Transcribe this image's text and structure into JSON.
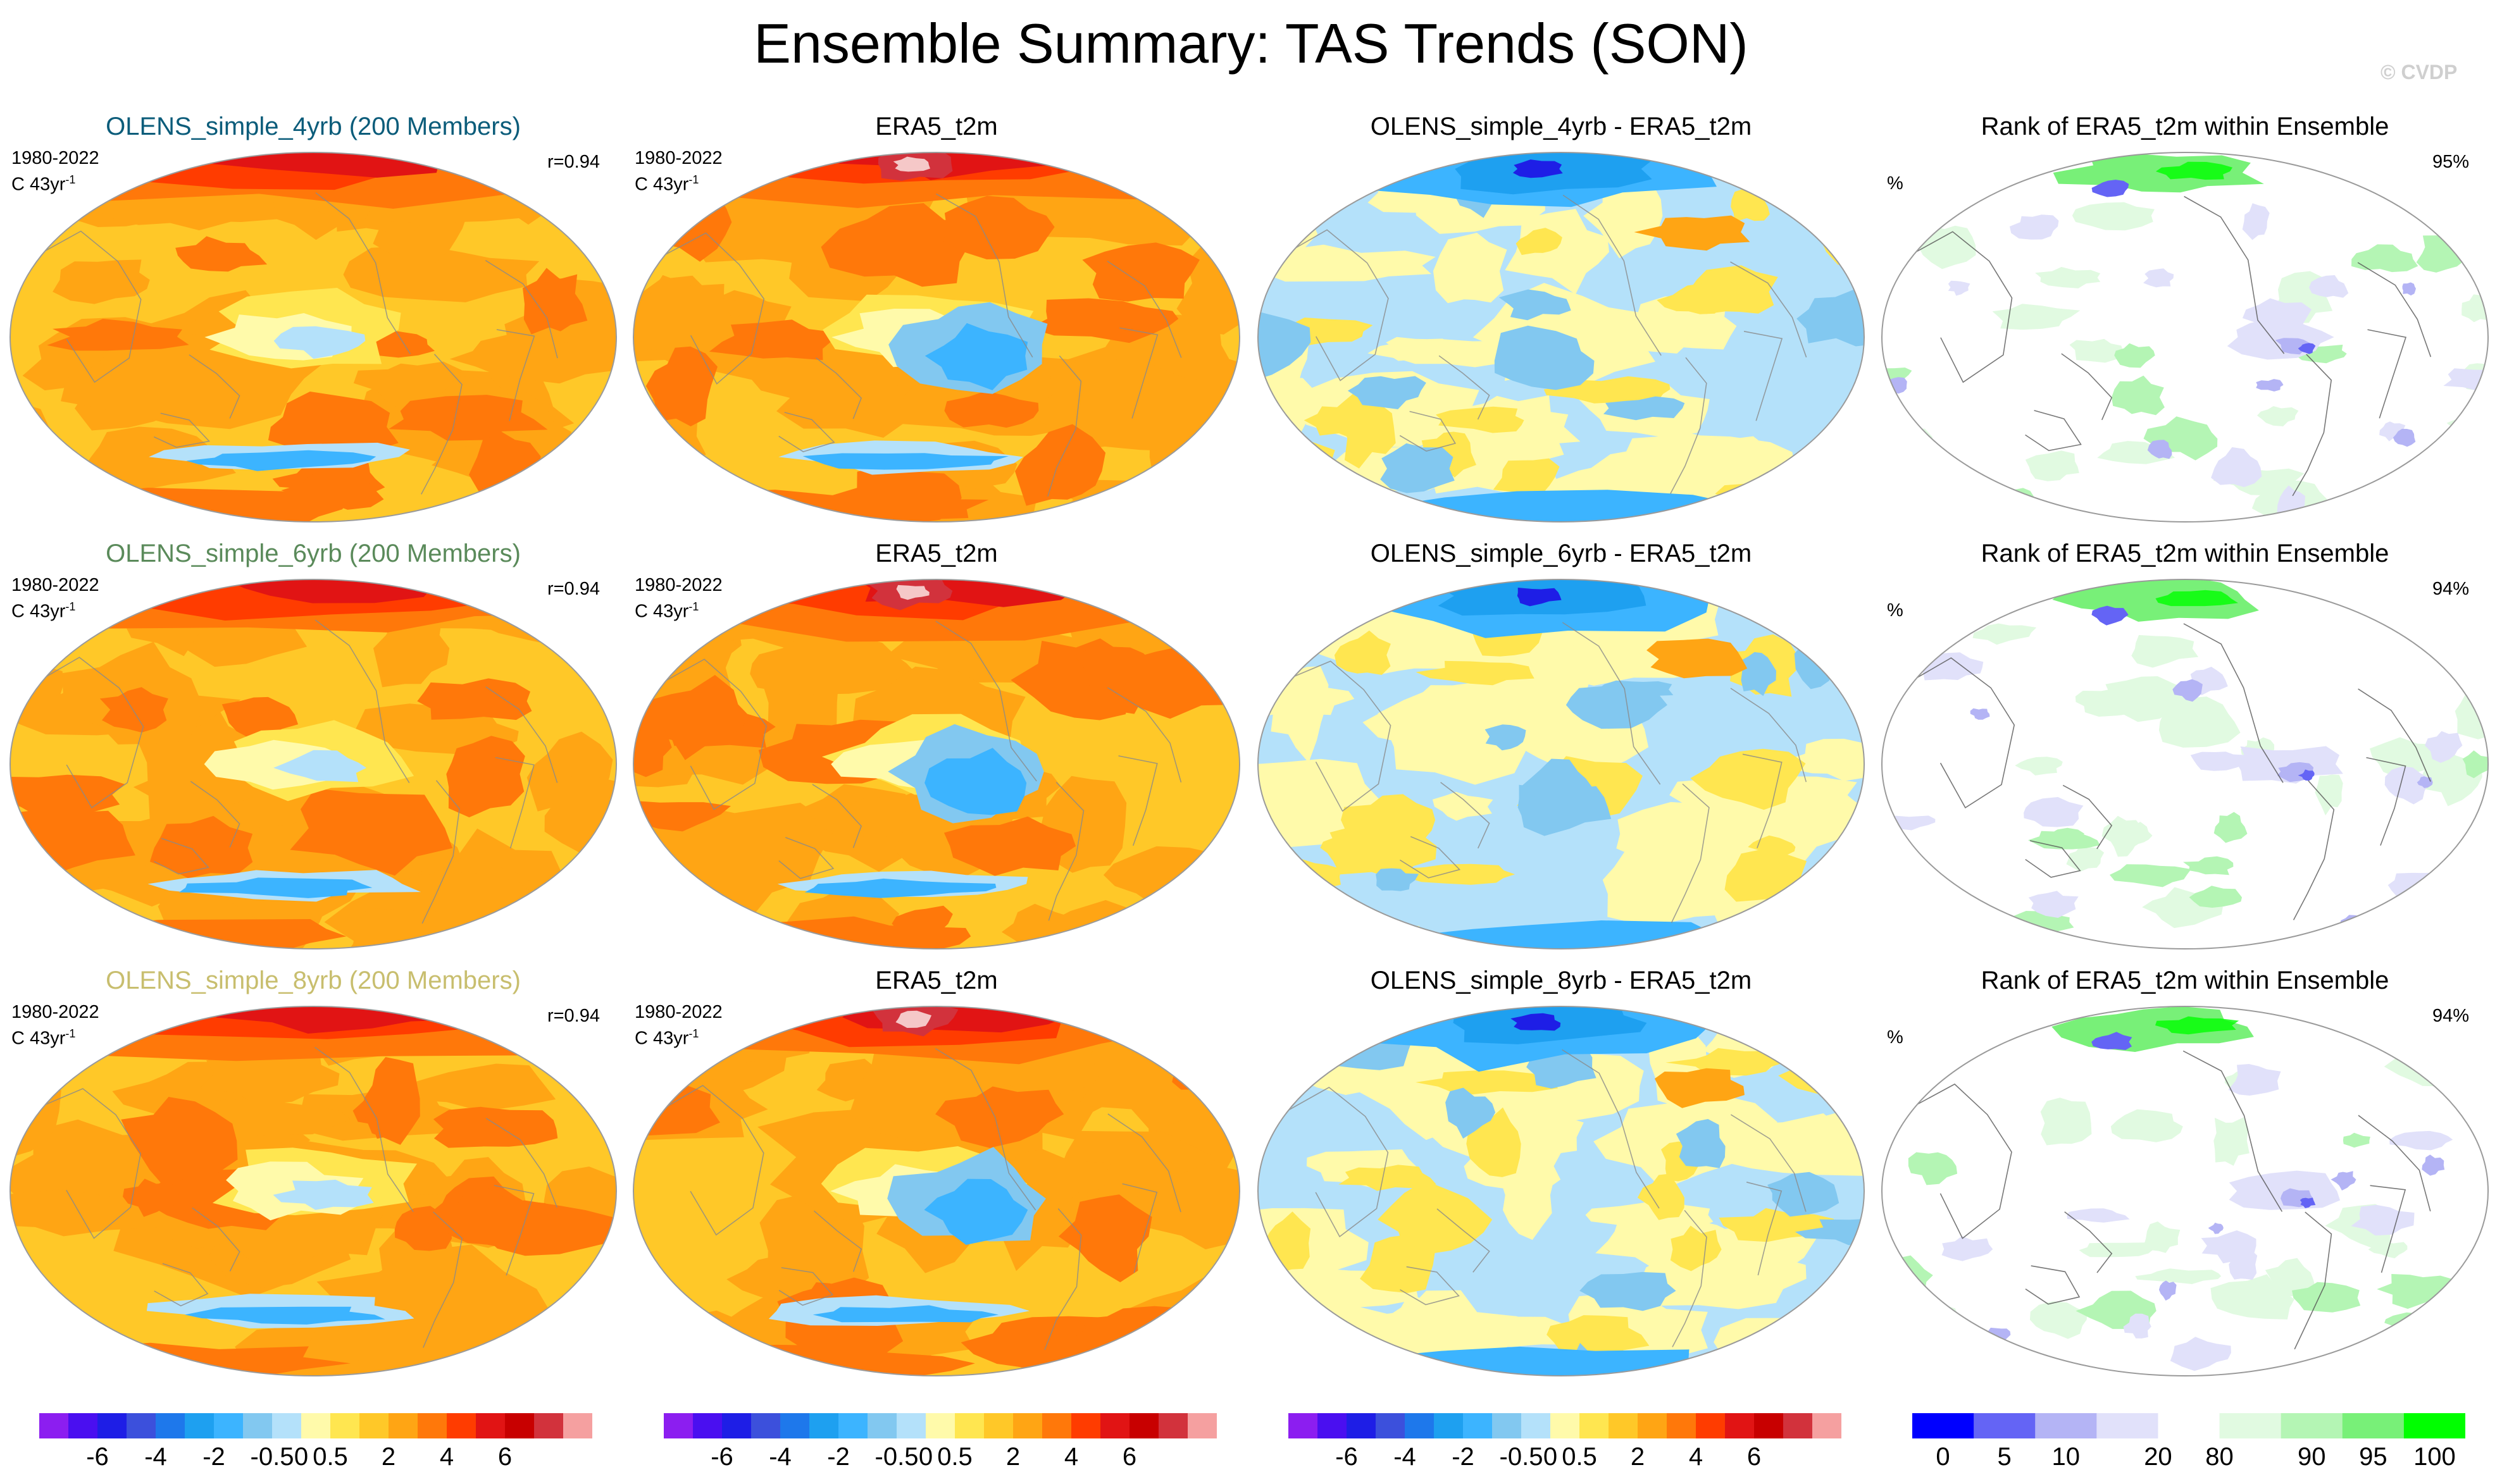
{
  "title": "Ensemble Summary: TAS Trends (SON)",
  "credit": "© CVDP",
  "rows": [
    {
      "ensemble": {
        "title": "OLENS_simple_4yrb (200 Members)",
        "title_color": "#0b5c7a",
        "period": "1980-2022",
        "units": "C 43yr",
        "units_sup": "-1",
        "corr": "r=0.94"
      },
      "obs": {
        "title": "ERA5_t2m",
        "period": "1980-2022",
        "units": "C 43yr",
        "units_sup": "-1"
      },
      "diff": {
        "title": "OLENS_simple_4yrb - ERA5_t2m"
      },
      "rank": {
        "title": "Rank of ERA5_t2m within Ensemble",
        "left": "%",
        "right": "95%"
      }
    },
    {
      "ensemble": {
        "title": "OLENS_simple_6yrb (200 Members)",
        "title_color": "#5a8a5a",
        "period": "1980-2022",
        "units": "C 43yr",
        "units_sup": "-1",
        "corr": "r=0.94"
      },
      "obs": {
        "title": "ERA5_t2m",
        "period": "1980-2022",
        "units": "C 43yr",
        "units_sup": "-1"
      },
      "diff": {
        "title": "OLENS_simple_6yrb - ERA5_t2m"
      },
      "rank": {
        "title": "Rank of ERA5_t2m within Ensemble",
        "left": "%",
        "right": "94%"
      }
    },
    {
      "ensemble": {
        "title": "OLENS_simple_8yrb (200 Members)",
        "title_color": "#c8be6e",
        "period": "1980-2022",
        "units": "C 43yr",
        "units_sup": "-1",
        "corr": "r=0.94"
      },
      "obs": {
        "title": "ERA5_t2m",
        "period": "1980-2022",
        "units": "C 43yr",
        "units_sup": "-1"
      },
      "diff": {
        "title": "OLENS_simple_8yrb - ERA5_t2m"
      },
      "rank": {
        "title": "Rank of ERA5_t2m within Ensemble",
        "left": "%",
        "right": "94%"
      }
    }
  ],
  "colorbars": {
    "trend": {
      "colors": [
        "#8c1ef0",
        "#4a0ff0",
        "#1e1ee6",
        "#3c50dc",
        "#1e78eb",
        "#1ea0f0",
        "#3cb4ff",
        "#82c8f0",
        "#b4e1fa",
        "#fffaaa",
        "#ffe650",
        "#ffc828",
        "#ffa514",
        "#ff780a",
        "#ff3c00",
        "#e11414",
        "#c80000",
        "#d2323c",
        "#f5a0a0"
      ],
      "labels": [
        "-6",
        "-4",
        "-2",
        "-0.5",
        "0",
        "0.5",
        "2",
        "4",
        "6"
      ]
    },
    "rank": {
      "colors": [
        "#0000ff",
        "#6464f5",
        "#b4b4f5",
        "#e1e1fa",
        "#ffffff",
        "#e1fae1",
        "#b4f5b4",
        "#78f078",
        "#00ff00"
      ],
      "labels": [
        "0",
        "5",
        "10",
        "20",
        "80",
        "90",
        "95",
        "100"
      ]
    }
  }
}
